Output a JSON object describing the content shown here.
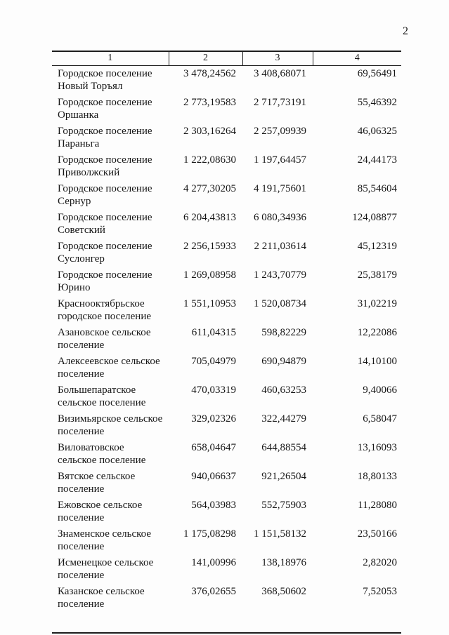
{
  "page": {
    "number": "2"
  },
  "table": {
    "headers": [
      "1",
      "2",
      "3",
      "4"
    ],
    "rows": [
      {
        "name": "Городское поселение Новый Торъял",
        "c2": "3 478,24562",
        "c3": "3 408,68071",
        "c4": "69,56491"
      },
      {
        "name": "Городское поселение Оршанка",
        "c2": "2 773,19583",
        "c3": "2 717,73191",
        "c4": "55,46392"
      },
      {
        "name": "Городское поселение Параньга",
        "c2": "2 303,16264",
        "c3": "2 257,09939",
        "c4": "46,06325"
      },
      {
        "name": "Городское поселение Приволжский",
        "c2": "1 222,08630",
        "c3": "1 197,64457",
        "c4": "24,44173"
      },
      {
        "name": "Городское поселение Сернур",
        "c2": "4 277,30205",
        "c3": "4 191,75601",
        "c4": "85,54604"
      },
      {
        "name": "Городское поселение Советский",
        "c2": "6 204,43813",
        "c3": "6 080,34936",
        "c4": "124,08877"
      },
      {
        "name": "Городское поселение Суслонгер",
        "c2": "2 256,15933",
        "c3": "2 211,03614",
        "c4": "45,12319"
      },
      {
        "name": "Городское поселение Юрино",
        "c2": "1 269,08958",
        "c3": "1 243,70779",
        "c4": "25,38179"
      },
      {
        "name": "Краснооктябрьское городское поселение",
        "c2": "1 551,10953",
        "c3": "1 520,08734",
        "c4": "31,02219"
      },
      {
        "name": "Азановское сельское поселение",
        "c2": "611,04315",
        "c3": "598,82229",
        "c4": "12,22086"
      },
      {
        "name": "Алексеевское сельское поселение",
        "c2": "705,04979",
        "c3": "690,94879",
        "c4": "14,10100"
      },
      {
        "name": "Большепаратское сельское поселение",
        "c2": "470,03319",
        "c3": "460,63253",
        "c4": "9,40066"
      },
      {
        "name": "Визимьярское сельское поселение",
        "c2": "329,02326",
        "c3": "322,44279",
        "c4": "6,58047"
      },
      {
        "name": "Виловатовское сельское поселение",
        "c2": "658,04647",
        "c3": "644,88554",
        "c4": "13,16093"
      },
      {
        "name": "Вятское сельское поселение",
        "c2": "940,06637",
        "c3": "921,26504",
        "c4": "18,80133"
      },
      {
        "name": "Ежовское сельское поселение",
        "c2": "564,03983",
        "c3": "552,75903",
        "c4": "11,28080"
      },
      {
        "name": "Знаменское сельское поселение",
        "c2": "1 175,08298",
        "c3": "1 151,58132",
        "c4": "23,50166"
      },
      {
        "name": "Исменецкое сельское поселение",
        "c2": "141,00996",
        "c3": "138,18976",
        "c4": "2,82020"
      },
      {
        "name": "Казанское сельское поселение",
        "c2": "376,02655",
        "c3": "368,50602",
        "c4": "7,52053"
      }
    ]
  }
}
